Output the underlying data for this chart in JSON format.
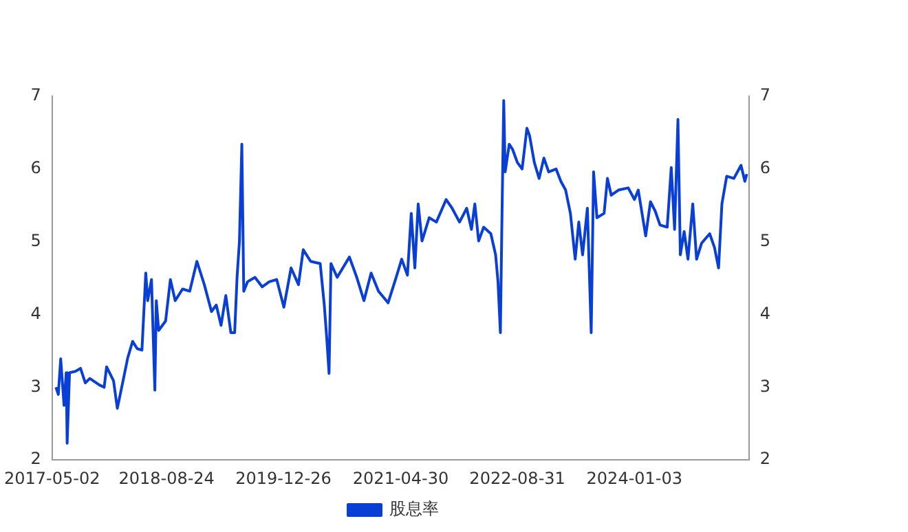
{
  "chart_data": {
    "type": "line",
    "x": [
      "2017-05-18",
      "2017-05-28",
      "2017-06-07",
      "2017-06-21",
      "2017-06-30",
      "2017-07-04",
      "2017-07-14",
      "2017-08-09",
      "2017-08-29",
      "2017-09-18",
      "2017-10-07",
      "2017-11-16",
      "2017-12-06",
      "2017-12-16",
      "2018-01-14",
      "2018-01-30",
      "2018-02-23",
      "2018-03-15",
      "2018-04-04",
      "2018-04-23",
      "2018-05-13",
      "2018-05-29",
      "2018-06-06",
      "2018-06-22",
      "2018-06-28",
      "2018-07-06",
      "2018-07-12",
      "2018-07-22",
      "2018-08-20",
      "2018-09-09",
      "2018-09-29",
      "2018-10-30",
      "2018-11-29",
      "2018-12-29",
      "2019-01-29",
      "2019-02-28",
      "2019-03-20",
      "2019-04-09",
      "2019-04-29",
      "2019-05-20",
      "2019-06-05",
      "2019-06-15",
      "2019-06-25",
      "2019-07-05",
      "2019-07-13",
      "2019-07-29",
      "2019-08-29",
      "2019-09-28",
      "2019-10-28",
      "2019-11-28",
      "2019-12-28",
      "2020-01-27",
      "2020-02-27",
      "2020-03-18",
      "2020-04-18",
      "2020-05-28",
      "2020-06-14",
      "2020-06-24",
      "2020-07-04",
      "2020-07-12",
      "2020-08-07",
      "2020-09-27",
      "2020-10-28",
      "2020-11-27",
      "2020-12-27",
      "2021-01-27",
      "2021-03-08",
      "2021-04-08",
      "2021-05-04",
      "2021-05-28",
      "2021-06-13",
      "2021-06-28",
      "2021-07-12",
      "2021-07-28",
      "2021-08-27",
      "2021-09-26",
      "2021-11-06",
      "2021-12-01",
      "2022-01-01",
      "2022-01-31",
      "2022-02-20",
      "2022-03-06",
      "2022-03-22",
      "2022-04-12",
      "2022-05-12",
      "2022-06-01",
      "2022-06-11",
      "2022-06-21",
      "2022-06-27",
      "2022-07-05",
      "2022-07-11",
      "2022-07-28",
      "2022-08-11",
      "2022-08-31",
      "2022-09-20",
      "2022-10-10",
      "2022-10-21",
      "2022-11-10",
      "2022-11-30",
      "2022-12-20",
      "2023-01-09",
      "2023-02-09",
      "2023-03-01",
      "2023-03-21",
      "2023-04-10",
      "2023-04-30",
      "2023-05-15",
      "2023-05-31",
      "2023-06-20",
      "2023-07-06",
      "2023-07-16",
      "2023-07-30",
      "2023-08-29",
      "2023-09-12",
      "2023-09-28",
      "2023-10-28",
      "2023-12-08",
      "2024-01-03",
      "2024-01-19",
      "2024-02-19",
      "2024-03-10",
      "2024-03-30",
      "2024-04-19",
      "2024-05-19",
      "2024-06-05",
      "2024-06-19",
      "2024-07-03",
      "2024-07-13",
      "2024-07-29",
      "2024-08-14",
      "2024-09-03",
      "2024-09-19",
      "2024-10-10",
      "2024-11-13",
      "2024-12-03",
      "2024-12-20",
      "2025-01-03",
      "2025-01-23",
      "2025-02-22",
      "2025-03-24",
      "2025-04-09",
      "2025-04-17"
    ],
    "series": [
      {
        "name": "股息率",
        "color": "#0a3fd6",
        "values": [
          3.0,
          2.9,
          3.39,
          2.75,
          3.2,
          2.23,
          3.2,
          3.22,
          3.26,
          3.06,
          3.12,
          3.03,
          3.0,
          3.28,
          3.09,
          2.71,
          3.09,
          3.41,
          3.63,
          3.53,
          3.51,
          4.57,
          4.19,
          4.48,
          3.82,
          2.96,
          4.19,
          3.78,
          3.91,
          4.48,
          4.19,
          4.35,
          4.32,
          4.73,
          4.41,
          4.04,
          4.13,
          3.85,
          4.26,
          3.75,
          3.75,
          4.51,
          5.01,
          6.34,
          4.32,
          4.45,
          4.51,
          4.38,
          4.45,
          4.48,
          4.1,
          4.64,
          4.41,
          4.89,
          4.73,
          4.7,
          4.13,
          3.69,
          3.19,
          4.7,
          4.51,
          4.79,
          4.51,
          4.19,
          4.57,
          4.32,
          4.16,
          4.48,
          4.76,
          4.54,
          5.39,
          4.64,
          5.52,
          5.01,
          5.33,
          5.27,
          5.58,
          5.46,
          5.27,
          5.46,
          5.17,
          5.52,
          5.01,
          5.2,
          5.11,
          4.82,
          4.45,
          3.75,
          5.2,
          6.94,
          5.96,
          6.34,
          6.27,
          6.09,
          6.0,
          6.56,
          6.46,
          6.09,
          5.87,
          6.15,
          5.96,
          6.0,
          5.83,
          5.71,
          5.39,
          4.76,
          5.27,
          4.82,
          5.46,
          3.75,
          5.96,
          5.33,
          5.39,
          5.87,
          5.64,
          5.71,
          5.74,
          5.58,
          5.71,
          5.08,
          5.55,
          5.42,
          5.23,
          5.2,
          6.02,
          5.17,
          6.68,
          4.82,
          5.14,
          4.76,
          5.52,
          4.76,
          4.98,
          5.11,
          4.92,
          4.64,
          5.52,
          5.9,
          5.87,
          6.05,
          5.83,
          5.93
        ]
      }
    ],
    "xlim": [
      "2017-05-02",
      "2025-04-26"
    ],
    "xticks": [
      "2017-05-02",
      "2018-08-24",
      "2019-12-26",
      "2021-04-30",
      "2022-08-31",
      "2024-01-03"
    ],
    "ylim": [
      2,
      7
    ],
    "yticks": [
      2,
      3,
      4,
      5,
      6,
      7
    ],
    "y2lim": [
      2,
      7
    ],
    "y2ticks": [
      2,
      3,
      4,
      5,
      6,
      7
    ],
    "grid": false,
    "legend": "bottom",
    "marker": "none",
    "line_style": "solid"
  }
}
